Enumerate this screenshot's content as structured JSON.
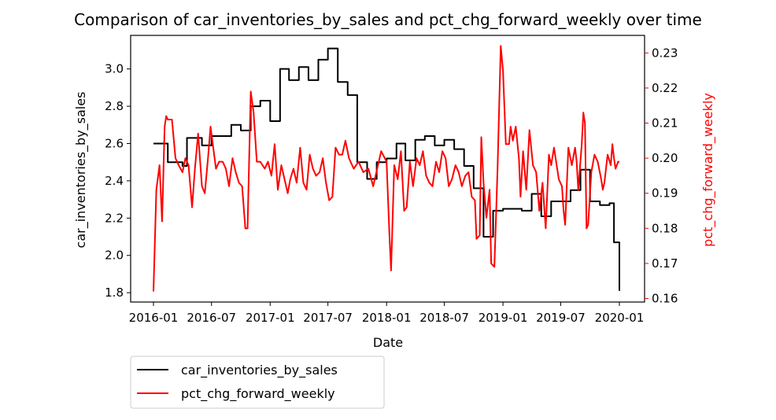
{
  "chart_data": {
    "type": "line",
    "title": "Comparison of car_inventories_by_sales and pct_chg_forward_weekly over time",
    "xlabel": "Date",
    "xlim": [
      "2016-01-01",
      "2020-01-01"
    ],
    "x_ticks": [
      "2016-01",
      "2016-07",
      "2017-01",
      "2017-07",
      "2018-01",
      "2018-07",
      "2019-01",
      "2019-07",
      "2020-01"
    ],
    "y_left": {
      "label": "car_inventories_by_sales",
      "ylim": [
        1.75,
        3.18
      ],
      "ticks": [
        "1.8",
        "2.0",
        "2.2",
        "2.4",
        "2.6",
        "2.8",
        "3.0"
      ],
      "color": "#000000"
    },
    "y_right": {
      "label": "pct_chg_forward_weekly",
      "ylim": [
        0.159,
        0.235
      ],
      "ticks": [
        "0.16",
        "0.17",
        "0.18",
        "0.19",
        "0.20",
        "0.21",
        "0.22",
        "0.23"
      ],
      "color": "#ff0000"
    },
    "legend": {
      "placement": "below-left",
      "entries": [
        "car_inventories_by_sales",
        "pct_chg_forward_weekly"
      ]
    },
    "series": [
      {
        "name": "car_inventories_by_sales",
        "axis": "left",
        "color": "#000000",
        "step": true,
        "points": [
          [
            "2016-01-01",
            2.6
          ],
          [
            "2016-02-01",
            2.6
          ],
          [
            "2016-02-15",
            2.5
          ],
          [
            "2016-03-01",
            2.5
          ],
          [
            "2016-04-01",
            2.48
          ],
          [
            "2016-04-15",
            2.63
          ],
          [
            "2016-05-01",
            2.63
          ],
          [
            "2016-06-01",
            2.59
          ],
          [
            "2016-07-01",
            2.64
          ],
          [
            "2016-08-01",
            2.64
          ],
          [
            "2016-09-01",
            2.7
          ],
          [
            "2016-10-01",
            2.67
          ],
          [
            "2016-11-01",
            2.8
          ],
          [
            "2016-12-01",
            2.83
          ],
          [
            "2017-01-01",
            2.72
          ],
          [
            "2017-02-01",
            3.0
          ],
          [
            "2017-03-01",
            2.94
          ],
          [
            "2017-04-01",
            3.01
          ],
          [
            "2017-05-01",
            2.94
          ],
          [
            "2017-06-01",
            3.05
          ],
          [
            "2017-07-01",
            3.11
          ],
          [
            "2017-08-01",
            2.93
          ],
          [
            "2017-09-01",
            2.86
          ],
          [
            "2017-10-01",
            2.5
          ],
          [
            "2017-11-01",
            2.41
          ],
          [
            "2017-12-01",
            2.5
          ],
          [
            "2018-01-01",
            2.52
          ],
          [
            "2018-02-01",
            2.6
          ],
          [
            "2018-03-01",
            2.51
          ],
          [
            "2018-04-01",
            2.62
          ],
          [
            "2018-05-01",
            2.64
          ],
          [
            "2018-06-01",
            2.59
          ],
          [
            "2018-07-01",
            2.62
          ],
          [
            "2018-08-01",
            2.57
          ],
          [
            "2018-09-01",
            2.48
          ],
          [
            "2018-10-01",
            2.36
          ],
          [
            "2018-11-01",
            2.1
          ],
          [
            "2018-12-01",
            2.24
          ],
          [
            "2019-01-01",
            2.25
          ],
          [
            "2019-02-01",
            2.25
          ],
          [
            "2019-03-01",
            2.24
          ],
          [
            "2019-04-01",
            2.33
          ],
          [
            "2019-05-01",
            2.21
          ],
          [
            "2019-06-01",
            2.29
          ],
          [
            "2019-07-01",
            2.29
          ],
          [
            "2019-08-01",
            2.35
          ],
          [
            "2019-09-01",
            2.46
          ],
          [
            "2019-10-01",
            2.29
          ],
          [
            "2019-11-01",
            2.27
          ],
          [
            "2019-12-01",
            2.28
          ],
          [
            "2019-12-15",
            2.07
          ],
          [
            "2020-01-01",
            1.81
          ]
        ]
      },
      {
        "name": "pct_chg_forward_weekly",
        "axis": "right",
        "color": "#ff0000",
        "step": false,
        "points": [
          [
            "2016-01-01",
            0.162
          ],
          [
            "2016-01-10",
            0.191
          ],
          [
            "2016-01-20",
            0.198
          ],
          [
            "2016-01-28",
            0.182
          ],
          [
            "2016-02-05",
            0.209
          ],
          [
            "2016-02-10",
            0.212
          ],
          [
            "2016-02-15",
            0.211
          ],
          [
            "2016-02-28",
            0.211
          ],
          [
            "2016-03-10",
            0.2
          ],
          [
            "2016-03-20",
            0.198
          ],
          [
            "2016-04-01",
            0.196
          ],
          [
            "2016-04-10",
            0.2
          ],
          [
            "2016-04-20",
            0.198
          ],
          [
            "2016-05-01",
            0.186
          ],
          [
            "2016-05-10",
            0.197
          ],
          [
            "2016-05-20",
            0.207
          ],
          [
            "2016-06-01",
            0.192
          ],
          [
            "2016-06-10",
            0.19
          ],
          [
            "2016-06-20",
            0.2
          ],
          [
            "2016-06-28",
            0.209
          ],
          [
            "2016-07-05",
            0.204
          ],
          [
            "2016-07-15",
            0.197
          ],
          [
            "2016-07-25",
            0.199
          ],
          [
            "2016-08-05",
            0.199
          ],
          [
            "2016-08-15",
            0.197
          ],
          [
            "2016-08-25",
            0.192
          ],
          [
            "2016-09-05",
            0.2
          ],
          [
            "2016-09-15",
            0.196
          ],
          [
            "2016-09-25",
            0.193
          ],
          [
            "2016-10-05",
            0.192
          ],
          [
            "2016-10-15",
            0.18
          ],
          [
            "2016-10-22",
            0.18
          ],
          [
            "2016-11-01",
            0.219
          ],
          [
            "2016-11-10",
            0.213
          ],
          [
            "2016-11-20",
            0.199
          ],
          [
            "2016-12-01",
            0.199
          ],
          [
            "2016-12-15",
            0.197
          ],
          [
            "2016-12-25",
            0.199
          ],
          [
            "2017-01-05",
            0.195
          ],
          [
            "2017-01-15",
            0.204
          ],
          [
            "2017-01-25",
            0.191
          ],
          [
            "2017-02-05",
            0.198
          ],
          [
            "2017-02-15",
            0.194
          ],
          [
            "2017-02-25",
            0.19
          ],
          [
            "2017-03-05",
            0.194
          ],
          [
            "2017-03-15",
            0.197
          ],
          [
            "2017-03-25",
            0.193
          ],
          [
            "2017-04-05",
            0.203
          ],
          [
            "2017-04-15",
            0.193
          ],
          [
            "2017-04-25",
            0.191
          ],
          [
            "2017-05-05",
            0.201
          ],
          [
            "2017-05-15",
            0.197
          ],
          [
            "2017-05-25",
            0.195
          ],
          [
            "2017-06-05",
            0.196
          ],
          [
            "2017-06-15",
            0.2
          ],
          [
            "2017-06-25",
            0.193
          ],
          [
            "2017-07-05",
            0.188
          ],
          [
            "2017-07-15",
            0.189
          ],
          [
            "2017-07-25",
            0.203
          ],
          [
            "2017-08-05",
            0.201
          ],
          [
            "2017-08-15",
            0.201
          ],
          [
            "2017-08-25",
            0.205
          ],
          [
            "2017-09-05",
            0.2
          ],
          [
            "2017-09-20",
            0.197
          ],
          [
            "2017-10-05",
            0.199
          ],
          [
            "2017-10-20",
            0.196
          ],
          [
            "2017-11-05",
            0.197
          ],
          [
            "2017-11-20",
            0.192
          ],
          [
            "2017-12-05",
            0.198
          ],
          [
            "2017-12-15",
            0.202
          ],
          [
            "2018-01-01",
            0.199
          ],
          [
            "2018-01-10",
            0.178
          ],
          [
            "2018-01-15",
            0.168
          ],
          [
            "2018-01-25",
            0.198
          ],
          [
            "2018-02-05",
            0.194
          ],
          [
            "2018-02-15",
            0.202
          ],
          [
            "2018-02-25",
            0.185
          ],
          [
            "2018-03-05",
            0.186
          ],
          [
            "2018-03-15",
            0.199
          ],
          [
            "2018-03-25",
            0.192
          ],
          [
            "2018-04-05",
            0.2
          ],
          [
            "2018-04-15",
            0.198
          ],
          [
            "2018-04-25",
            0.202
          ],
          [
            "2018-05-05",
            0.195
          ],
          [
            "2018-05-15",
            0.193
          ],
          [
            "2018-05-25",
            0.192
          ],
          [
            "2018-06-05",
            0.199
          ],
          [
            "2018-06-15",
            0.196
          ],
          [
            "2018-06-25",
            0.202
          ],
          [
            "2018-07-05",
            0.2
          ],
          [
            "2018-07-15",
            0.192
          ],
          [
            "2018-07-25",
            0.194
          ],
          [
            "2018-08-05",
            0.198
          ],
          [
            "2018-08-15",
            0.196
          ],
          [
            "2018-08-25",
            0.192
          ],
          [
            "2018-09-05",
            0.195
          ],
          [
            "2018-09-15",
            0.196
          ],
          [
            "2018-09-25",
            0.189
          ],
          [
            "2018-10-05",
            0.188
          ],
          [
            "2018-10-10",
            0.177
          ],
          [
            "2018-10-20",
            0.178
          ],
          [
            "2018-10-25",
            0.206
          ],
          [
            "2018-11-01",
            0.193
          ],
          [
            "2018-11-10",
            0.183
          ],
          [
            "2018-11-20",
            0.191
          ],
          [
            "2018-11-25",
            0.17
          ],
          [
            "2018-12-05",
            0.169
          ],
          [
            "2018-12-15",
            0.197
          ],
          [
            "2018-12-25",
            0.232
          ],
          [
            "2019-01-01",
            0.225
          ],
          [
            "2019-01-10",
            0.204
          ],
          [
            "2019-01-20",
            0.204
          ],
          [
            "2019-01-25",
            0.209
          ],
          [
            "2019-02-01",
            0.205
          ],
          [
            "2019-02-10",
            0.209
          ],
          [
            "2019-02-20",
            0.2
          ],
          [
            "2019-02-25",
            0.189
          ],
          [
            "2019-03-05",
            0.202
          ],
          [
            "2019-03-15",
            0.191
          ],
          [
            "2019-03-25",
            0.208
          ],
          [
            "2019-04-05",
            0.198
          ],
          [
            "2019-04-15",
            0.196
          ],
          [
            "2019-04-25",
            0.185
          ],
          [
            "2019-05-05",
            0.193
          ],
          [
            "2019-05-15",
            0.18
          ],
          [
            "2019-05-25",
            0.201
          ],
          [
            "2019-06-01",
            0.198
          ],
          [
            "2019-06-10",
            0.203
          ],
          [
            "2019-06-20",
            0.197
          ],
          [
            "2019-06-25",
            0.194
          ],
          [
            "2019-07-05",
            0.192
          ],
          [
            "2019-07-10",
            0.185
          ],
          [
            "2019-07-15",
            0.181
          ],
          [
            "2019-07-25",
            0.203
          ],
          [
            "2019-08-05",
            0.198
          ],
          [
            "2019-08-15",
            0.203
          ],
          [
            "2019-08-20",
            0.199
          ],
          [
            "2019-08-25",
            0.191
          ],
          [
            "2019-09-05",
            0.204
          ],
          [
            "2019-09-10",
            0.213
          ],
          [
            "2019-09-15",
            0.21
          ],
          [
            "2019-09-20",
            0.18
          ],
          [
            "2019-09-25",
            0.181
          ],
          [
            "2019-10-05",
            0.196
          ],
          [
            "2019-10-15",
            0.201
          ],
          [
            "2019-10-25",
            0.199
          ],
          [
            "2019-11-05",
            0.194
          ],
          [
            "2019-11-10",
            0.191
          ],
          [
            "2019-11-15",
            0.193
          ],
          [
            "2019-11-25",
            0.201
          ],
          [
            "2019-12-05",
            0.198
          ],
          [
            "2019-12-10",
            0.204
          ],
          [
            "2019-12-15",
            0.2
          ],
          [
            "2019-12-20",
            0.197
          ],
          [
            "2019-12-28",
            0.199
          ],
          [
            "2020-01-01",
            0.199
          ]
        ]
      }
    ]
  }
}
